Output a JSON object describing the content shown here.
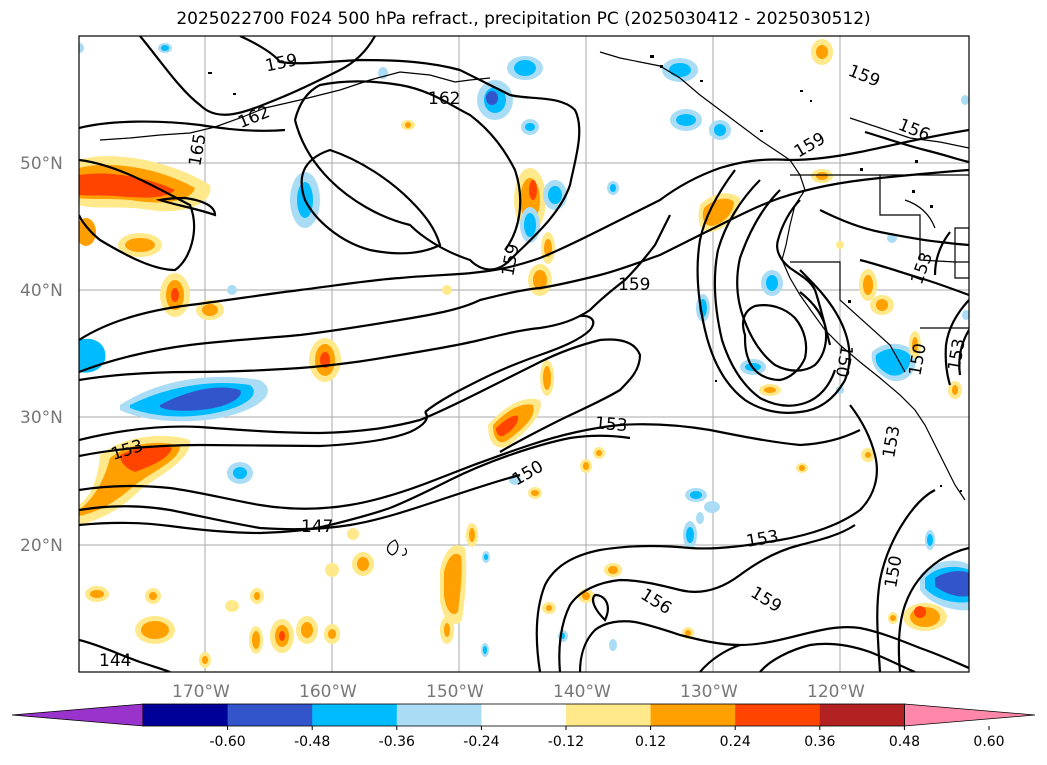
{
  "title": "2025022700 F024 500 hPa refract., precipitation PC (2025030412 - 2025030512)",
  "lat_labels": [
    "50°N",
    "40°N",
    "30°N",
    "20°N"
  ],
  "lon_labels": [
    "170°W",
    "160°W",
    "150°W",
    "140°W",
    "130°W",
    "120°W"
  ],
  "contour_labels": [
    "159",
    "162",
    "162",
    "165",
    "159",
    "159",
    "156",
    "159",
    "159",
    "153",
    "153",
    "150",
    "153",
    "150",
    "153",
    "150",
    "153",
    "147",
    "153",
    "150",
    "156",
    "159",
    "144"
  ],
  "colorbar": {
    "colors": [
      "#9933cc",
      "#000099",
      "#3355cc",
      "#00bbff",
      "#aaddf5",
      "#ffffff",
      "#ffe98a",
      "#ffa000",
      "#ff4400",
      "#b22222",
      "#ff88aa"
    ],
    "ticks": [
      "-0.60",
      "-0.48",
      "-0.36",
      "-0.24",
      "-0.12",
      "0.12",
      "0.24",
      "0.36",
      "0.48",
      "0.60"
    ]
  },
  "legend_colors": {
    "positive_light": "#ffe98a",
    "positive_mid": "#ffa000",
    "positive_strong": "#ff4400",
    "negative_light": "#aaddf5",
    "negative_mid": "#00bbff",
    "negative_strong": "#3355cc"
  }
}
